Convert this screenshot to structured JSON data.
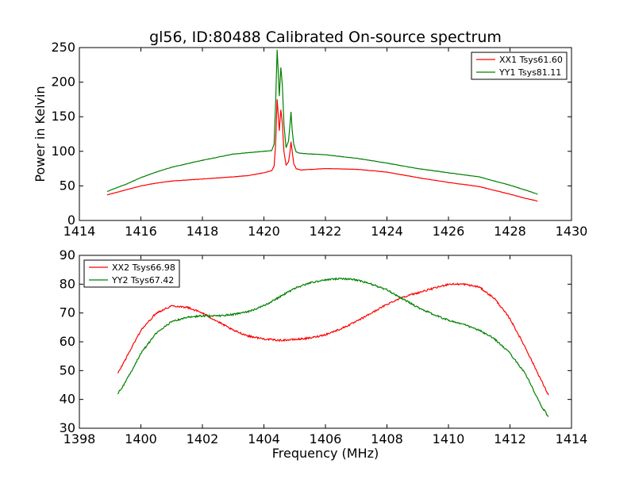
{
  "figure": {
    "title": "gl56, ID:80488 Calibrated On-source spectrum",
    "xlabel": "Frequency (MHz)",
    "ylabel": "Power in Kelvin"
  },
  "colors": {
    "red": "#ff0000",
    "green": "#008000"
  },
  "chart_data": [
    {
      "type": "line",
      "panel": "top",
      "xlim": [
        1414,
        1430
      ],
      "ylim": [
        0,
        250
      ],
      "xticks": [
        1414,
        1416,
        1418,
        1420,
        1422,
        1424,
        1426,
        1428,
        1430
      ],
      "yticks": [
        0,
        50,
        100,
        150,
        200,
        250
      ],
      "legend_position": "top-right",
      "series": [
        {
          "name": "XX1 Tsys61.60",
          "color": "#ff0000",
          "points": [
            [
              1414.9,
              37
            ],
            [
              1415.5,
              44
            ],
            [
              1416.0,
              50
            ],
            [
              1416.5,
              54
            ],
            [
              1417.0,
              57
            ],
            [
              1418.0,
              60
            ],
            [
              1419.0,
              63
            ],
            [
              1419.5,
              65
            ],
            [
              1420.0,
              69
            ],
            [
              1420.25,
              72
            ],
            [
              1420.33,
              78
            ],
            [
              1420.38,
              110
            ],
            [
              1420.43,
              175
            ],
            [
              1420.47,
              150
            ],
            [
              1420.5,
              130
            ],
            [
              1420.55,
              160
            ],
            [
              1420.6,
              140
            ],
            [
              1420.65,
              100
            ],
            [
              1420.72,
              80
            ],
            [
              1420.8,
              85
            ],
            [
              1420.85,
              100
            ],
            [
              1420.88,
              114
            ],
            [
              1420.92,
              100
            ],
            [
              1420.97,
              82
            ],
            [
              1421.05,
              75
            ],
            [
              1421.2,
              73
            ],
            [
              1422.0,
              75
            ],
            [
              1423.0,
              74
            ],
            [
              1424.0,
              70
            ],
            [
              1425.0,
              62
            ],
            [
              1426.0,
              55
            ],
            [
              1427.0,
              49
            ],
            [
              1428.0,
              38
            ],
            [
              1428.5,
              32
            ],
            [
              1428.9,
              28
            ]
          ]
        },
        {
          "name": "YY1 Tsys81.11",
          "color": "#008000",
          "points": [
            [
              1414.9,
              42
            ],
            [
              1415.5,
              52
            ],
            [
              1416.0,
              62
            ],
            [
              1416.5,
              70
            ],
            [
              1417.0,
              77
            ],
            [
              1418.0,
              87
            ],
            [
              1419.0,
              96
            ],
            [
              1419.5,
              98
            ],
            [
              1420.0,
              100
            ],
            [
              1420.25,
              101
            ],
            [
              1420.33,
              110
            ],
            [
              1420.38,
              170
            ],
            [
              1420.43,
              247
            ],
            [
              1420.47,
              210
            ],
            [
              1420.5,
              180
            ],
            [
              1420.55,
              221
            ],
            [
              1420.6,
              195
            ],
            [
              1420.65,
              140
            ],
            [
              1420.72,
              105
            ],
            [
              1420.8,
              115
            ],
            [
              1420.85,
              140
            ],
            [
              1420.88,
              157
            ],
            [
              1420.92,
              130
            ],
            [
              1420.97,
              110
            ],
            [
              1421.05,
              99
            ],
            [
              1421.2,
              97
            ],
            [
              1422.0,
              95
            ],
            [
              1423.0,
              90
            ],
            [
              1424.0,
              83
            ],
            [
              1425.0,
              75
            ],
            [
              1426.0,
              69
            ],
            [
              1427.0,
              63
            ],
            [
              1428.0,
              51
            ],
            [
              1428.5,
              44
            ],
            [
              1428.9,
              38
            ]
          ]
        }
      ]
    },
    {
      "type": "line",
      "panel": "bottom",
      "xlim": [
        1398,
        1414
      ],
      "ylim": [
        30,
        90
      ],
      "xticks": [
        1398,
        1400,
        1402,
        1404,
        1406,
        1408,
        1410,
        1412,
        1414
      ],
      "yticks": [
        30,
        40,
        50,
        60,
        70,
        80,
        90
      ],
      "legend_position": "top-left",
      "series": [
        {
          "name": "XX2 Tsys66.98",
          "color": "#ff0000",
          "points": [
            [
              1399.25,
              49
            ],
            [
              1399.5,
              54
            ],
            [
              1400.0,
              64
            ],
            [
              1400.5,
              70
            ],
            [
              1401.0,
              72.5
            ],
            [
              1401.5,
              72
            ],
            [
              1402.0,
              70
            ],
            [
              1402.5,
              67
            ],
            [
              1403.0,
              64
            ],
            [
              1403.5,
              62
            ],
            [
              1404.0,
              61
            ],
            [
              1404.5,
              60.5
            ],
            [
              1405.0,
              60.8
            ],
            [
              1405.5,
              61.3
            ],
            [
              1406.0,
              62.5
            ],
            [
              1406.5,
              64.5
            ],
            [
              1407.0,
              67
            ],
            [
              1407.5,
              70
            ],
            [
              1408.0,
              73
            ],
            [
              1408.5,
              75.5
            ],
            [
              1409.0,
              77
            ],
            [
              1409.5,
              78.5
            ],
            [
              1410.0,
              80
            ],
            [
              1410.5,
              80
            ],
            [
              1411.0,
              79
            ],
            [
              1411.5,
              75
            ],
            [
              1412.0,
              68
            ],
            [
              1412.5,
              58
            ],
            [
              1413.0,
              47
            ],
            [
              1413.25,
              41.5
            ]
          ]
        },
        {
          "name": "YY2 Tsys67.42",
          "color": "#008000",
          "points": [
            [
              1399.25,
              42
            ],
            [
              1399.5,
              46
            ],
            [
              1400.0,
              56
            ],
            [
              1400.5,
              63
            ],
            [
              1401.0,
              67
            ],
            [
              1401.5,
              68.5
            ],
            [
              1402.0,
              69
            ],
            [
              1402.5,
              69
            ],
            [
              1403.0,
              69.5
            ],
            [
              1403.5,
              70.5
            ],
            [
              1404.0,
              72.5
            ],
            [
              1404.5,
              75.5
            ],
            [
              1405.0,
              78.5
            ],
            [
              1405.5,
              80.5
            ],
            [
              1406.0,
              81.5
            ],
            [
              1406.5,
              82
            ],
            [
              1407.0,
              81.5
            ],
            [
              1407.5,
              80
            ],
            [
              1408.0,
              78
            ],
            [
              1408.5,
              75
            ],
            [
              1409.0,
              72
            ],
            [
              1409.5,
              69.5
            ],
            [
              1410.0,
              67.5
            ],
            [
              1410.5,
              66
            ],
            [
              1411.0,
              64
            ],
            [
              1411.5,
              61
            ],
            [
              1412.0,
              56
            ],
            [
              1412.5,
              49
            ],
            [
              1413.0,
              38
            ],
            [
              1413.25,
              34
            ]
          ]
        }
      ]
    }
  ]
}
